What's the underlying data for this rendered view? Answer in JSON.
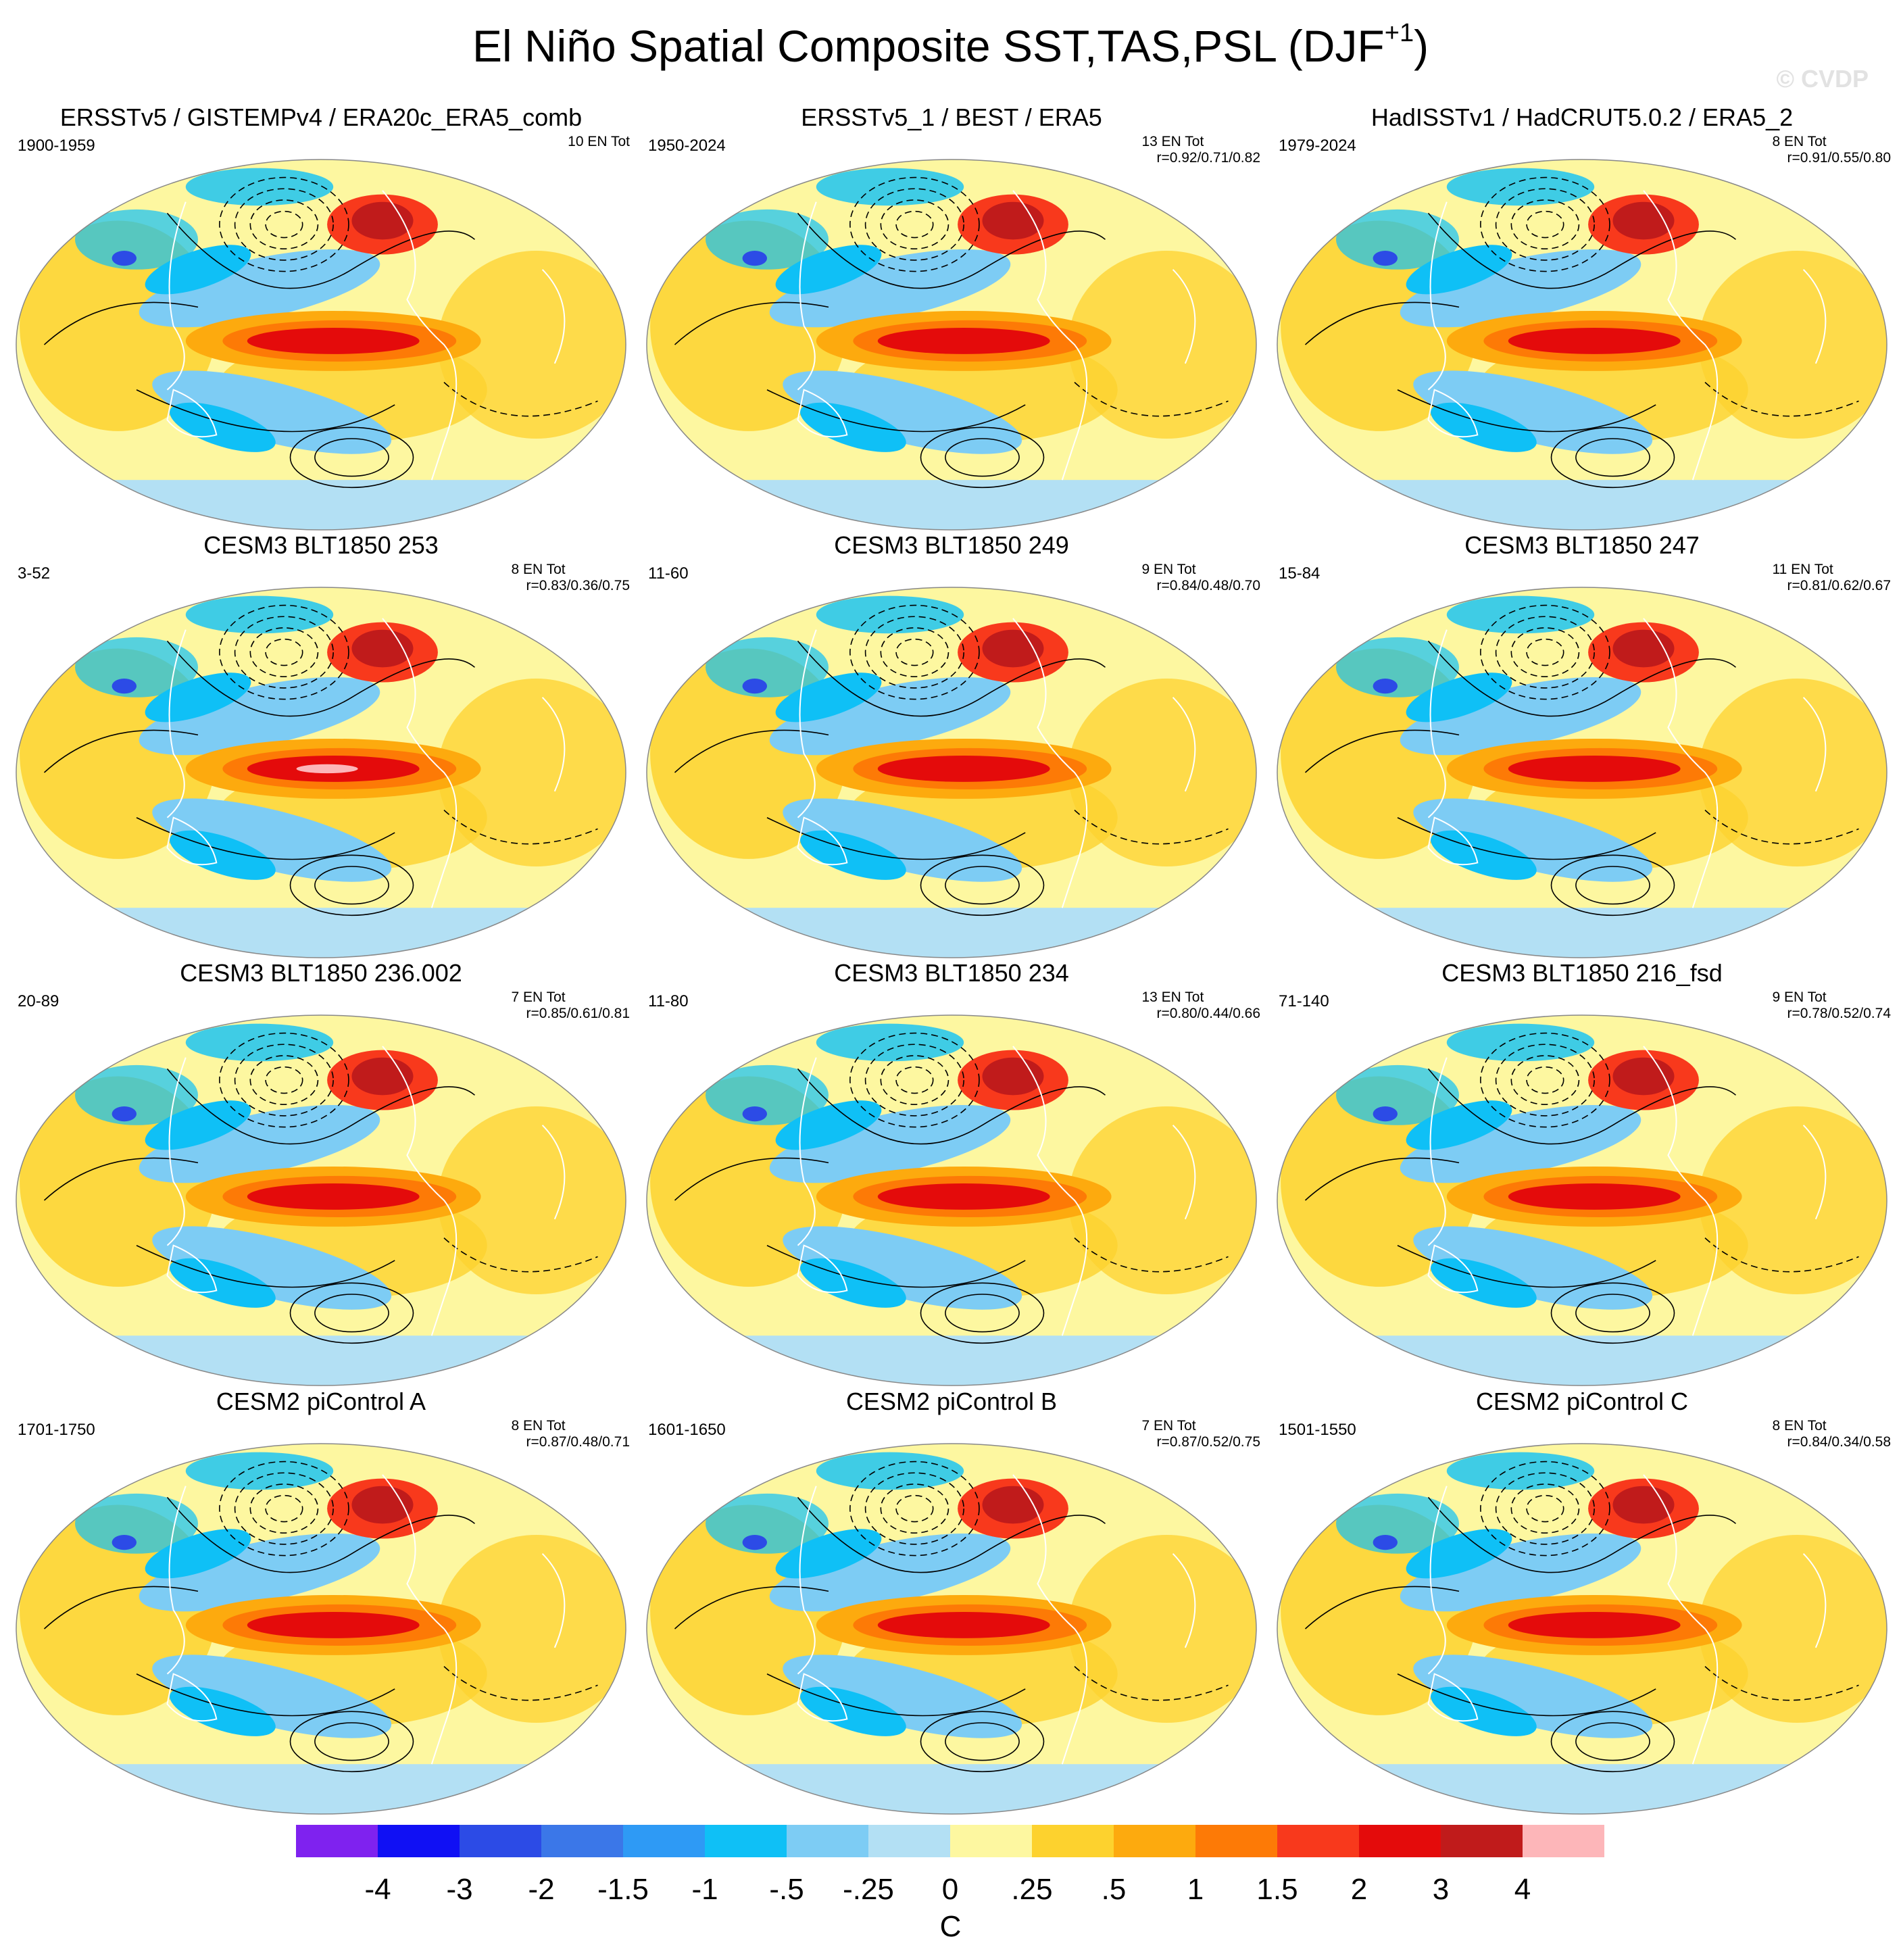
{
  "title": {
    "main": "El Niño Spatial Composite SST,TAS,PSL (DJF",
    "superscript": "+1",
    "close": ")"
  },
  "watermark": "© CVDP",
  "colors": {
    "palette": [
      "#7f22ef",
      "#1010f4",
      "#2c4be6",
      "#3b77e8",
      "#2e9af5",
      "#0fc0f6",
      "#7dccf4",
      "#b3e0f4",
      "#fdf7a0",
      "#fdd22e",
      "#fdaa0e",
      "#fd7a06",
      "#f8391c",
      "#e40b0b",
      "#c01b1b",
      "#fdb6b9"
    ],
    "contour": "#000000",
    "coastline": "#ffffff"
  },
  "panels": [
    {
      "title": "ERSSTv5 / GISTEMPv4 / ERA20c_ERA5_comb",
      "period": "1900-1959",
      "events": "10 EN Tot",
      "r": ""
    },
    {
      "title": "ERSSTv5_1 / BEST / ERA5",
      "period": "1950-2024",
      "events": "13 EN Tot",
      "r": "r=0.92/0.71/0.82"
    },
    {
      "title": "HadISSTv1 / HadCRUT5.0.2 / ERA5_2",
      "period": "1979-2024",
      "events": "8 EN Tot",
      "r": "r=0.91/0.55/0.80"
    },
    {
      "title": "CESM3 BLT1850 253",
      "period": "3-52",
      "events": "8 EN Tot",
      "r": "r=0.83/0.36/0.75"
    },
    {
      "title": "CESM3 BLT1850 249",
      "period": "11-60",
      "events": "9 EN Tot",
      "r": "r=0.84/0.48/0.70"
    },
    {
      "title": "CESM3 BLT1850 247",
      "period": "15-84",
      "events": "11 EN Tot",
      "r": "r=0.81/0.62/0.67"
    },
    {
      "title": "CESM3 BLT1850 236.002",
      "period": "20-89",
      "events": "7 EN Tot",
      "r": "r=0.85/0.61/0.81"
    },
    {
      "title": "CESM3 BLT1850 234",
      "period": "11-80",
      "events": "13 EN Tot",
      "r": "r=0.80/0.44/0.66"
    },
    {
      "title": "CESM3 BLT1850 216_fsd",
      "period": "71-140",
      "events": "9 EN Tot",
      "r": "r=0.78/0.52/0.74"
    },
    {
      "title": "CESM2 piControl A",
      "period": "1701-1750",
      "events": "8 EN Tot",
      "r": "r=0.87/0.48/0.71"
    },
    {
      "title": "CESM2 piControl B",
      "period": "1601-1650",
      "events": "7 EN Tot",
      "r": "r=0.87/0.52/0.75"
    },
    {
      "title": "CESM2 piControl C",
      "period": "1501-1550",
      "events": "8 EN Tot",
      "r": "r=0.84/0.34/0.58"
    }
  ],
  "chart_data": {
    "type": "heatmap",
    "title": "El Niño Spatial Composite SST,TAS,PSL (DJF+1)",
    "projection": "robinson",
    "variables": [
      "SST",
      "TAS",
      "PSL"
    ],
    "colorbar": {
      "levels": [
        "-4",
        "-3",
        "-2",
        "-1.5",
        "-1",
        "-.5",
        "-.25",
        "0",
        ".25",
        ".5",
        "1",
        "1.5",
        "2",
        "3",
        "4"
      ],
      "unit": "C"
    },
    "grid": false,
    "legend": "bottom"
  }
}
